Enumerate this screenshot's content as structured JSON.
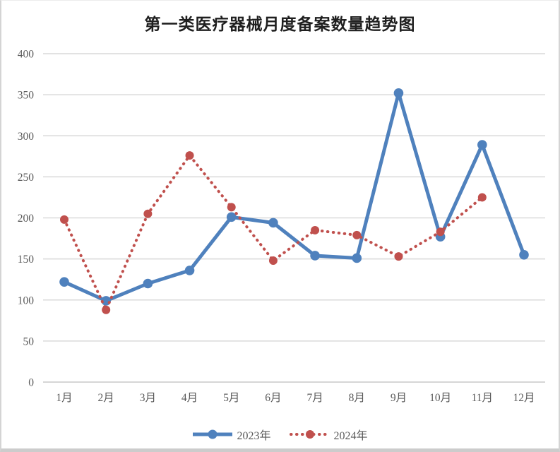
{
  "chart_data": {
    "type": "line",
    "title": "第一类医疗器械月度备案数量趋势图",
    "categories": [
      "1月",
      "2月",
      "3月",
      "4月",
      "5月",
      "6月",
      "7月",
      "8月",
      "9月",
      "10月",
      "11月",
      "12月"
    ],
    "series": [
      {
        "name": "2023年",
        "color": "#4F81BD",
        "line_style": "solid",
        "marker": "circle",
        "values": [
          122,
          99,
          120,
          136,
          201,
          194,
          154,
          151,
          352,
          177,
          289,
          155
        ]
      },
      {
        "name": "2024年",
        "color": "#C0504D",
        "line_style": "dotted",
        "marker": "circle",
        "values": [
          198,
          88,
          205,
          276,
          213,
          148,
          185,
          179,
          153,
          183,
          225,
          null
        ]
      }
    ],
    "xlabel": "",
    "ylabel": "",
    "ylim": [
      0,
      400
    ],
    "ytick_step": 50,
    "grid": "horizontal",
    "gridline_color": "#D9D9D9",
    "axis_line_color": "#C9C9C9",
    "axis_label_color": "#595959",
    "legend_position": "bottom"
  }
}
